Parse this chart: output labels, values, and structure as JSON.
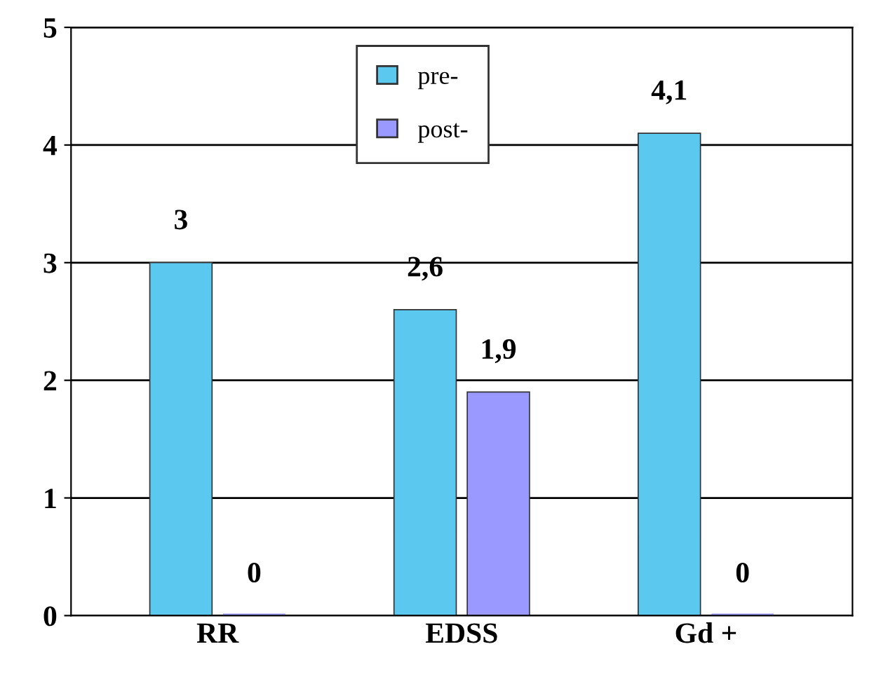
{
  "chart_data": {
    "type": "bar",
    "categories": [
      "RR",
      "EDSS",
      "Gd +"
    ],
    "series": [
      {
        "name": "pre-",
        "color": "#5bc8f0",
        "values": [
          3,
          2.6,
          4.1
        ],
        "value_labels": [
          "3",
          "2,6",
          "4,1"
        ]
      },
      {
        "name": "post-",
        "color": "#9999ff",
        "values": [
          0,
          1.9,
          0
        ],
        "value_labels": [
          "0",
          "1,9",
          "0"
        ]
      }
    ],
    "ylim": [
      0,
      5
    ],
    "yticks": [
      0,
      1,
      2,
      3,
      4,
      5
    ],
    "grid": "y",
    "legend": "top"
  }
}
